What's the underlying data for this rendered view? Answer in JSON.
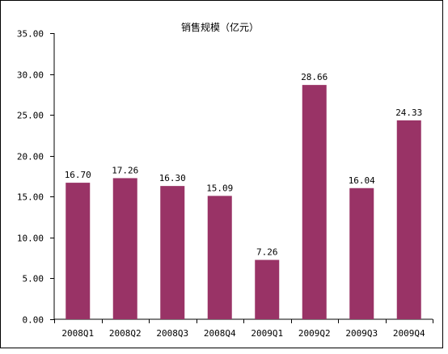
{
  "chart_data": {
    "type": "bar",
    "title": "销售规模（亿元）",
    "categories": [
      "2008Q1",
      "2008Q2",
      "2008Q3",
      "2008Q4",
      "2009Q1",
      "2009Q2",
      "2009Q3",
      "2009Q4"
    ],
    "values": [
      16.7,
      17.26,
      16.3,
      15.09,
      7.26,
      28.66,
      16.04,
      24.33
    ],
    "data_labels": [
      "16.70",
      "17.26",
      "16.30",
      "15.09",
      "7.26",
      "28.66",
      "16.04",
      "24.33"
    ],
    "y_ticks": [
      "0.00",
      "5.00",
      "10.00",
      "15.00",
      "20.00",
      "25.00",
      "30.00",
      "35.00"
    ],
    "ylim": [
      0,
      35
    ],
    "grid": false,
    "legend": "none",
    "bar_color": "#993366"
  }
}
